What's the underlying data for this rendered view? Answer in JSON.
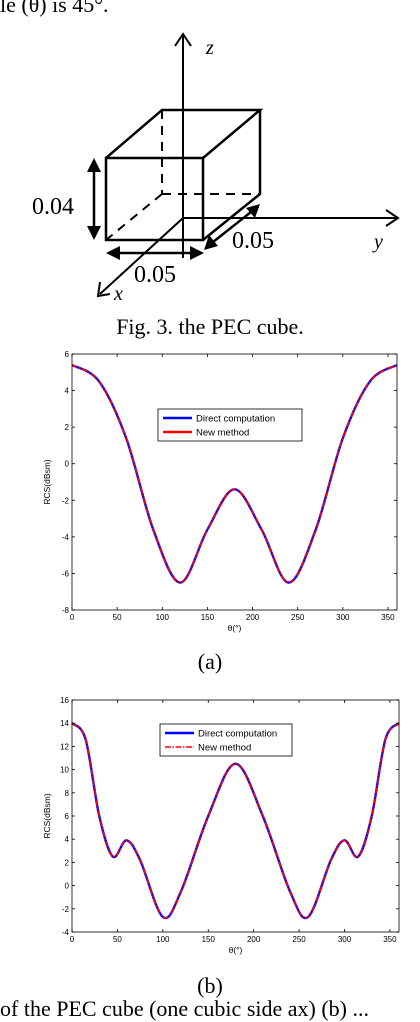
{
  "top_fragment": "le (θ) is 45°.",
  "figure3": {
    "axis_z": "z",
    "axis_y": "y",
    "axis_x": "x",
    "height_label": "0.04",
    "depth_label": "0.05",
    "width_label": "0.05",
    "caption": "Fig. 3. the PEC cube."
  },
  "chart_data": [
    {
      "type": "line",
      "xlabel": "θ(°)",
      "ylabel": "RCS(dBsm)",
      "xlim": [
        0,
        360
      ],
      "ylim": [
        -8,
        6
      ],
      "xticks": [
        0,
        50,
        100,
        150,
        200,
        250,
        300,
        350
      ],
      "yticks": [
        -8,
        -6,
        -4,
        -2,
        0,
        2,
        4,
        6
      ],
      "grid": false,
      "legend": "top-center",
      "series": [
        {
          "name": "Direct computation",
          "color": "#0000ff",
          "x": [
            0,
            30,
            60,
            90,
            120,
            150,
            180,
            210,
            240,
            270,
            300,
            330,
            360
          ],
          "values": [
            5.4,
            4.5,
            1.4,
            -3.6,
            -6.5,
            -3.6,
            -1.4,
            -3.6,
            -6.5,
            -3.6,
            1.4,
            4.5,
            5.4
          ]
        },
        {
          "name": "New method",
          "color": "#ff0000",
          "x": [
            0,
            30,
            60,
            90,
            120,
            150,
            180,
            210,
            240,
            270,
            300,
            330,
            360
          ],
          "values": [
            5.4,
            4.5,
            1.4,
            -3.6,
            -6.5,
            -3.6,
            -1.4,
            -3.6,
            -6.5,
            -3.6,
            1.4,
            4.5,
            5.4
          ]
        }
      ]
    },
    {
      "type": "line",
      "xlabel": "θ(°)",
      "ylabel": "RCS(dBsm)",
      "xlim": [
        0,
        360
      ],
      "ylim": [
        -4,
        16
      ],
      "xticks": [
        0,
        50,
        100,
        150,
        200,
        250,
        300,
        350
      ],
      "yticks": [
        -4,
        -2,
        0,
        2,
        4,
        6,
        8,
        10,
        12,
        14,
        16
      ],
      "grid": false,
      "legend": "top-center",
      "series": [
        {
          "name": "Direct computation",
          "color": "#0000ff",
          "x": [
            0,
            15,
            30,
            45,
            60,
            75,
            100,
            120,
            150,
            180,
            210,
            240,
            260,
            285,
            300,
            315,
            330,
            345,
            360
          ],
          "values": [
            14,
            12.6,
            6,
            2.5,
            3.9,
            2.2,
            -2.7,
            -0.5,
            6,
            10.5,
            6,
            -0.5,
            -2.7,
            2.2,
            3.9,
            2.5,
            6,
            12.6,
            14
          ]
        },
        {
          "name": "New method",
          "color": "#ff0000",
          "x": [
            0,
            15,
            30,
            45,
            60,
            75,
            100,
            120,
            150,
            180,
            210,
            240,
            260,
            285,
            300,
            315,
            330,
            345,
            360
          ],
          "values": [
            14,
            12.6,
            6,
            2.5,
            3.9,
            2.2,
            -2.7,
            -0.5,
            6,
            10.5,
            6,
            -0.5,
            -2.7,
            2.2,
            3.9,
            2.5,
            6,
            12.6,
            14
          ]
        }
      ]
    }
  ],
  "subfig_labels": [
    "(a)",
    "(b)"
  ],
  "bottom_fragment": "of the PEC cube (one cubic side ax) (b) ..."
}
